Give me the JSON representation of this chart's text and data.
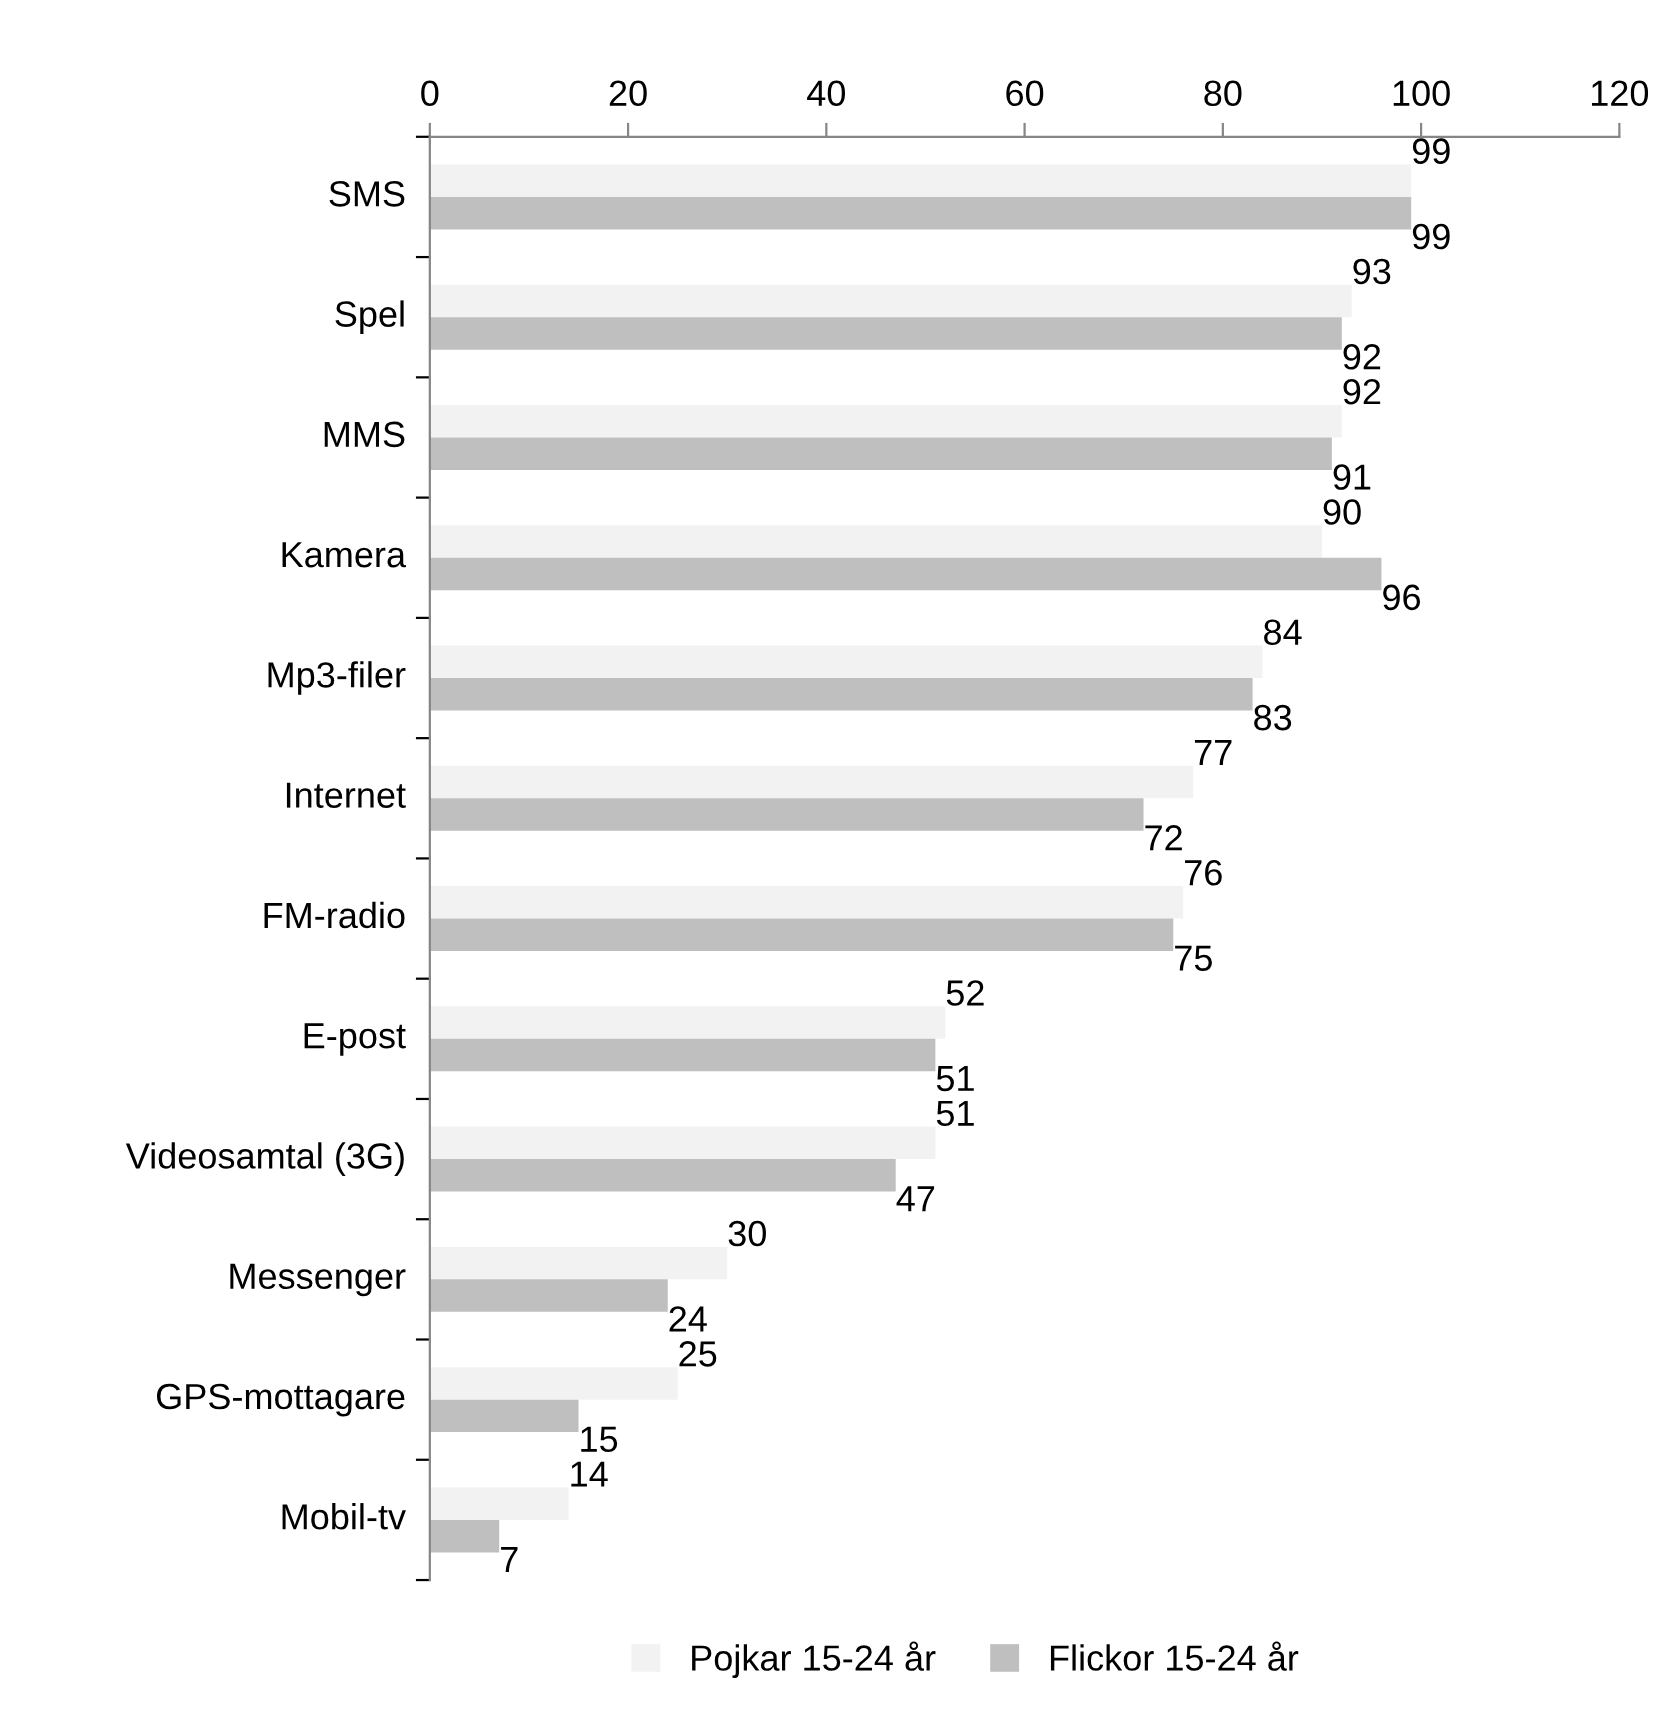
{
  "chart_data": {
    "type": "bar",
    "orientation": "horizontal",
    "categories": [
      "SMS",
      "Spel",
      "MMS",
      "Kamera",
      "Mp3-filer",
      "Internet",
      "FM-radio",
      "E-post",
      "Videosamtal (3G)",
      "Messenger",
      "GPS-mottagare",
      "Mobil-tv"
    ],
    "series": [
      {
        "name": "Pojkar 15-24 år",
        "color": "#f2f2f2",
        "values": [
          99,
          93,
          92,
          90,
          84,
          77,
          76,
          52,
          51,
          30,
          25,
          14
        ]
      },
      {
        "name": "Flickor 15-24 år",
        "color": "#bfbfbf",
        "values": [
          99,
          92,
          91,
          96,
          83,
          72,
          75,
          51,
          47,
          24,
          15,
          7
        ]
      }
    ],
    "xlim": [
      0,
      120
    ],
    "xticks": [
      0,
      20,
      40,
      60,
      80,
      100,
      120
    ],
    "grid": false,
    "legend": "bottom",
    "data_labels": true
  }
}
